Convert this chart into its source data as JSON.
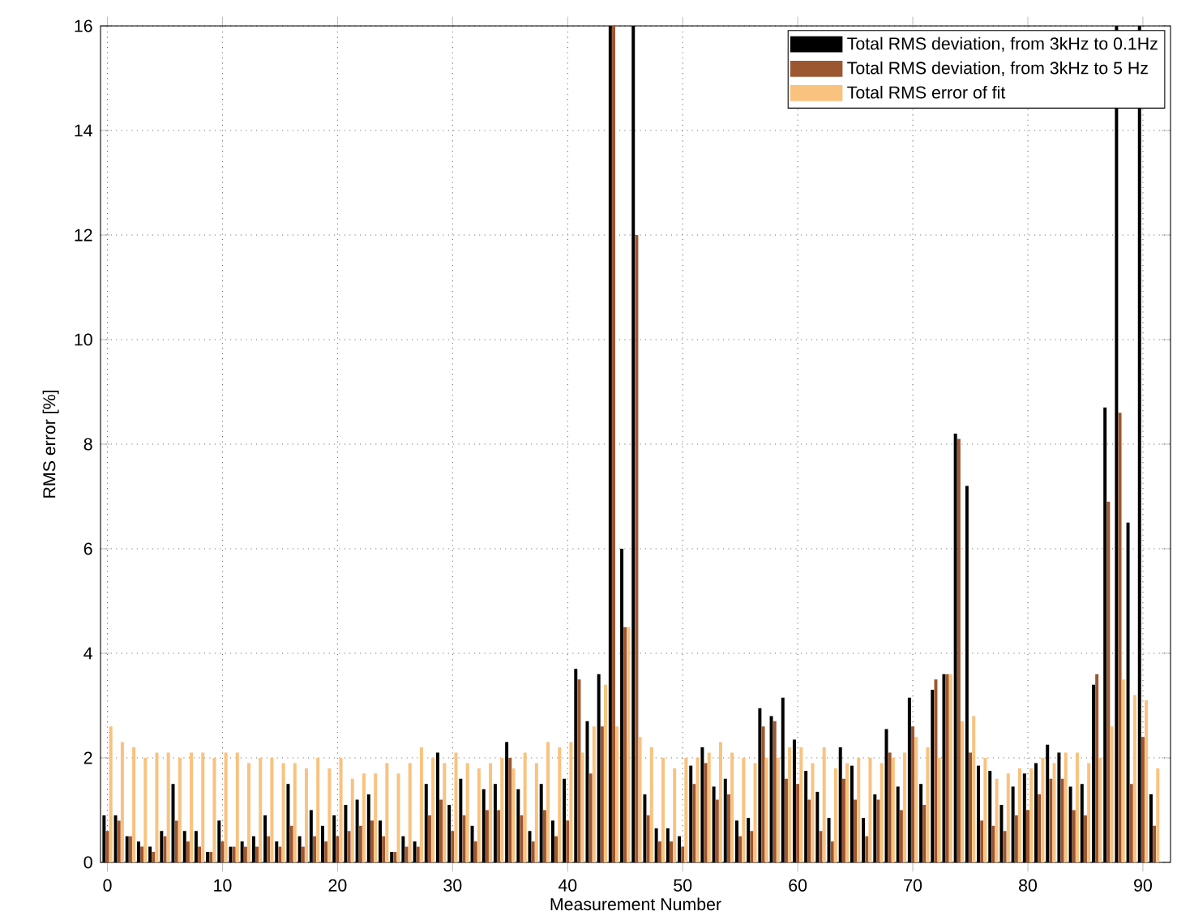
{
  "chart_data": {
    "type": "bar",
    "xlabel": "Measurement Number",
    "ylabel": "RMS error [%]",
    "x": [
      0,
      1,
      2,
      3,
      4,
      5,
      6,
      7,
      8,
      9,
      10,
      11,
      12,
      13,
      14,
      15,
      16,
      17,
      18,
      19,
      20,
      21,
      22,
      23,
      24,
      25,
      26,
      27,
      28,
      29,
      30,
      31,
      32,
      33,
      34,
      35,
      36,
      37,
      38,
      39,
      40,
      41,
      42,
      43,
      44,
      45,
      46,
      47,
      48,
      49,
      50,
      51,
      52,
      53,
      54,
      55,
      56,
      57,
      58,
      59,
      60,
      61,
      62,
      63,
      64,
      65,
      66,
      67,
      68,
      69,
      70,
      71,
      72,
      73,
      74,
      75,
      76,
      77,
      78,
      79,
      80,
      81,
      82,
      83,
      84,
      85,
      86,
      87,
      88,
      89,
      90,
      91
    ],
    "series": [
      {
        "name": "Total RMS deviation, from 3kHz to 0.1Hz",
        "color": "#000000",
        "values": [
          0.9,
          0.9,
          0.5,
          0.4,
          0.3,
          0.6,
          1.5,
          0.6,
          0.6,
          0.2,
          0.8,
          0.3,
          0.4,
          0.5,
          0.9,
          0.4,
          1.5,
          0.5,
          1.0,
          0.7,
          0.9,
          1.1,
          1.2,
          1.3,
          0.8,
          0.2,
          0.5,
          0.4,
          1.5,
          2.1,
          1.1,
          1.6,
          0.7,
          1.4,
          1.5,
          2.3,
          1.4,
          0.6,
          1.5,
          0.8,
          1.6,
          3.7,
          2.7,
          3.6,
          16,
          6.0,
          16,
          1.3,
          0.65,
          0.65,
          0.5,
          1.85,
          2.2,
          1.45,
          1.6,
          0.8,
          0.85,
          2.95,
          2.8,
          3.15,
          2.35,
          1.75,
          1.35,
          0.85,
          2.2,
          1.85,
          0.85,
          1.3,
          2.55,
          1.45,
          3.15,
          1.5,
          3.3,
          3.6,
          8.2,
          7.2,
          1.85,
          1.75,
          1.1,
          1.45,
          1.7,
          1.9,
          2.25,
          2.1,
          1.45,
          1.5,
          3.4,
          8.7,
          16,
          6.5,
          16,
          1.3
        ]
      },
      {
        "name": "Total RMS deviation, from 3kHz to 5 Hz",
        "color": "#9c5630",
        "values": [
          0.6,
          0.8,
          0.5,
          0.3,
          0.2,
          0.5,
          0.8,
          0.4,
          0.3,
          0.2,
          0.4,
          0.3,
          0.3,
          0.3,
          0.5,
          0.3,
          0.7,
          0.3,
          0.5,
          0.4,
          0.5,
          0.6,
          0.7,
          0.8,
          0.5,
          0.2,
          0.3,
          0.3,
          0.9,
          1.2,
          0.6,
          0.9,
          0.4,
          1.0,
          1.0,
          2.0,
          0.9,
          0.4,
          1.0,
          0.5,
          0.8,
          3.5,
          1.7,
          2.6,
          16,
          4.5,
          12.0,
          0.9,
          0.4,
          0.4,
          0.3,
          1.5,
          1.9,
          1.2,
          1.3,
          0.5,
          0.6,
          2.6,
          2.7,
          1.6,
          1.5,
          1.2,
          0.6,
          0.4,
          1.6,
          1.2,
          0.5,
          1.2,
          2.1,
          1.0,
          2.6,
          1.1,
          3.5,
          3.6,
          8.1,
          2.1,
          0.8,
          0.7,
          0.6,
          0.9,
          1.0,
          1.3,
          1.6,
          1.6,
          1.0,
          0.9,
          3.6,
          6.9,
          8.6,
          1.5,
          2.4,
          0.7
        ]
      },
      {
        "name": "Total RMS error of fit",
        "color": "#f9c27e",
        "values": [
          2.6,
          2.3,
          2.2,
          2.0,
          2.1,
          2.1,
          2.0,
          2.1,
          2.1,
          2.0,
          2.1,
          2.1,
          1.9,
          2.0,
          2.0,
          1.9,
          1.9,
          1.8,
          2.0,
          1.8,
          2.0,
          1.6,
          1.7,
          1.7,
          1.9,
          1.7,
          1.9,
          2.2,
          2.0,
          1.9,
          2.1,
          1.9,
          1.8,
          1.9,
          2.0,
          1.8,
          2.1,
          1.9,
          2.3,
          2.2,
          2.3,
          2.1,
          2.6,
          3.4,
          2.6,
          4.5,
          2.4,
          2.2,
          2.0,
          1.8,
          2.0,
          2.0,
          2.1,
          2.3,
          2.1,
          2.0,
          1.9,
          2.0,
          2.0,
          2.2,
          2.2,
          1.9,
          2.2,
          1.8,
          1.9,
          2.0,
          2.0,
          1.9,
          2.0,
          2.1,
          2.4,
          2.2,
          2.0,
          3.6,
          2.7,
          2.8,
          2.0,
          1.6,
          1.7,
          1.8,
          1.8,
          2.0,
          1.9,
          2.1,
          2.1,
          1.9,
          2.0,
          2.6,
          3.5,
          3.2,
          3.1,
          1.8
        ]
      }
    ],
    "xlim": [
      -0.6,
      92.4
    ],
    "ylim": [
      0,
      16
    ],
    "xticks": [
      0,
      10,
      20,
      30,
      40,
      50,
      60,
      70,
      80,
      90
    ],
    "yticks": [
      0,
      2,
      4,
      6,
      8,
      10,
      12,
      14,
      16
    ],
    "grid": true,
    "legend": "top right"
  }
}
